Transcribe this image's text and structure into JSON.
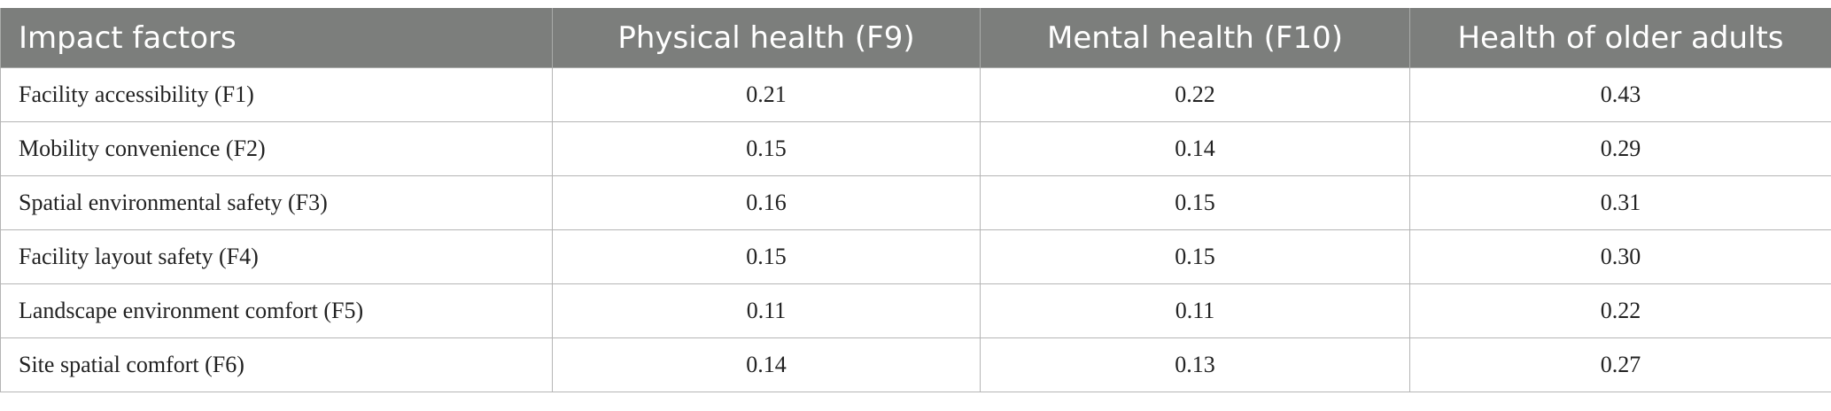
{
  "table": {
    "headers": [
      "Impact factors",
      "Physical health (F9)",
      "Mental health (F10)",
      "Health of older adults"
    ],
    "rows": [
      [
        "Facility accessibility (F1)",
        "0.21",
        "0.22",
        "0.43"
      ],
      [
        "Mobility convenience (F2)",
        "0.15",
        "0.14",
        "0.29"
      ],
      [
        "Spatial environmental safety (F3)",
        "0.16",
        "0.15",
        "0.31"
      ],
      [
        "Facility layout safety (F4)",
        "0.15",
        "0.15",
        "0.30"
      ],
      [
        "Landscape environment comfort (F5)",
        "0.11",
        "0.11",
        "0.22"
      ],
      [
        "Site spatial comfort (F6)",
        "0.14",
        "0.13",
        "0.27"
      ]
    ]
  },
  "colors": {
    "header_background": "#7c7e7c",
    "header_text": "#ffffff",
    "grid_line": "#b5b5b5"
  }
}
